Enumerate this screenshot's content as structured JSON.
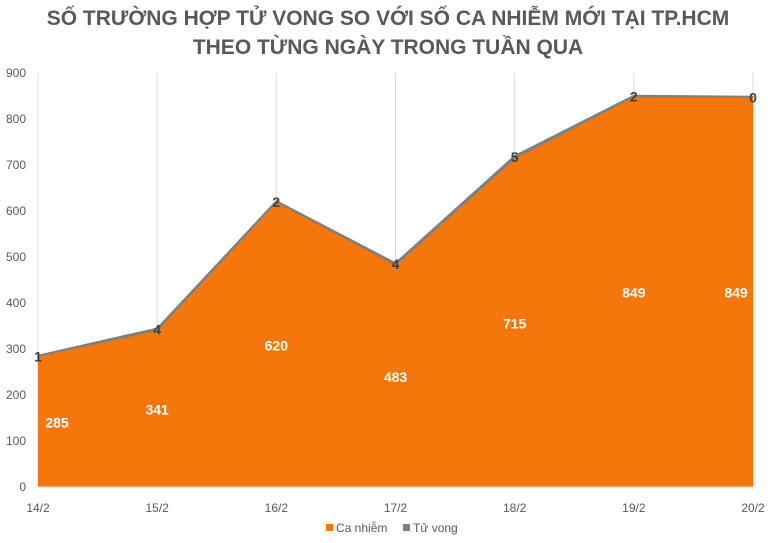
{
  "chart_data": {
    "type": "area",
    "title_line1": "SỐ TRƯỜNG HỢP TỬ VONG SO VỚI SỐ CA NHIỄM MỚI TẠI TP.HCM",
    "title_line2": "THEO TỪNG NGÀY TRONG TUẦN QUA",
    "categories": [
      "14/2",
      "15/2",
      "16/2",
      "17/2",
      "18/2",
      "19/2",
      "20/2"
    ],
    "series": [
      {
        "name": "Ca nhiễm",
        "values": [
          285,
          341,
          620,
          483,
          715,
          849,
          849
        ],
        "color": "#f5760a"
      },
      {
        "name": "Tử vong",
        "values": [
          1,
          4,
          2,
          4,
          5,
          2,
          0
        ],
        "color": "#7f7f7f"
      }
    ],
    "ylim": [
      0,
      900
    ],
    "yticks": [
      0,
      100,
      200,
      300,
      400,
      500,
      600,
      700,
      800,
      900
    ],
    "grid": "vertical",
    "legend_position": "bottom"
  }
}
